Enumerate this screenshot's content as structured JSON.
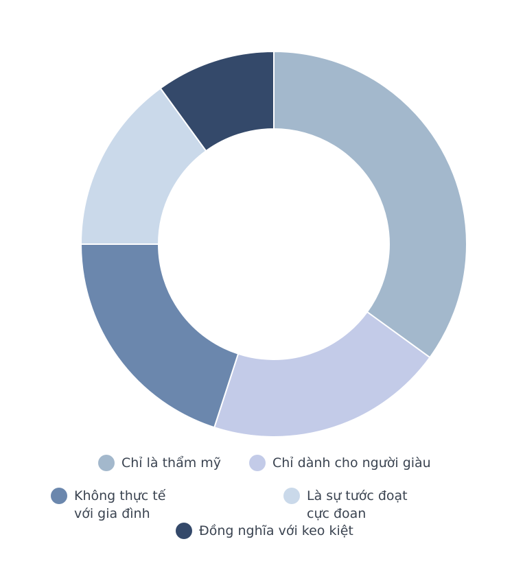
{
  "chart_data": {
    "type": "donut",
    "categories": [
      "Chỉ là thẩm mỹ",
      "Chỉ dành cho người giàu",
      "Không thực tế với gia đình",
      "Là sự tước đoạt cực đoan",
      "Đồng nghĩa với keo kiệt"
    ],
    "values": [
      35,
      20,
      20,
      15,
      10
    ],
    "colors": [
      "#a3b8cc",
      "#c3cbe8",
      "#6b87ad",
      "#cad9ea",
      "#34496a"
    ]
  }
}
